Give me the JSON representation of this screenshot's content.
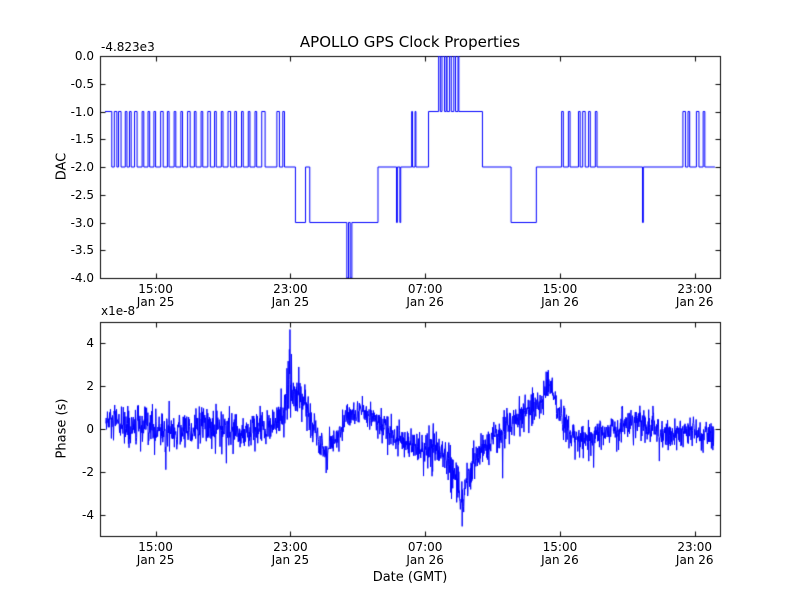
{
  "figure": {
    "title": "APOLLO GPS Clock Properties",
    "background": "#ffffff",
    "line_color": "#0000ff",
    "frame_color": "#000000"
  },
  "chart_data": [
    {
      "id": "dac",
      "type": "line",
      "title": "APOLLO GPS Clock Properties",
      "ylabel": "DAC",
      "y_offset_label": "-4.823e3",
      "y_offset_value": -4823,
      "line_style": "steps-post",
      "line_color": "#0000ff",
      "ylim": [
        -4.0,
        0.0
      ],
      "xlim": [
        11.7,
        48.5
      ],
      "yticks": [
        {
          "v": 0.0,
          "label": "0.0"
        },
        {
          "v": -0.5,
          "label": "-0.5"
        },
        {
          "v": -1.0,
          "label": "-1.0"
        },
        {
          "v": -1.5,
          "label": "-1.5"
        },
        {
          "v": -2.0,
          "label": "-2.0"
        },
        {
          "v": -2.5,
          "label": "-2.5"
        },
        {
          "v": -3.0,
          "label": "-3.0"
        },
        {
          "v": -3.5,
          "label": "-3.5"
        },
        {
          "v": -4.0,
          "label": "-4.0"
        }
      ],
      "xticks": [
        {
          "v": 15,
          "time": "15:00",
          "date": "Jan 25"
        },
        {
          "v": 23,
          "time": "23:00",
          "date": "Jan 25"
        },
        {
          "v": 31,
          "time": "07:00",
          "date": "Jan 26"
        },
        {
          "v": 39,
          "time": "15:00",
          "date": "Jan 26"
        },
        {
          "v": 47,
          "time": "23:00",
          "date": "Jan 26"
        }
      ],
      "t_end": 48.2,
      "steps": [
        [
          12.0,
          -1
        ],
        [
          12.4,
          -2
        ],
        [
          12.55,
          -1
        ],
        [
          12.7,
          -2
        ],
        [
          12.8,
          -1
        ],
        [
          12.95,
          -2
        ],
        [
          13.2,
          -1
        ],
        [
          13.3,
          -2
        ],
        [
          13.45,
          -1
        ],
        [
          13.55,
          -2
        ],
        [
          13.75,
          -1
        ],
        [
          13.9,
          -2
        ],
        [
          14.2,
          -1
        ],
        [
          14.3,
          -2
        ],
        [
          14.55,
          -1
        ],
        [
          14.65,
          -2
        ],
        [
          14.9,
          -1
        ],
        [
          15.0,
          -2
        ],
        [
          15.3,
          -1
        ],
        [
          15.45,
          -2
        ],
        [
          15.7,
          -1
        ],
        [
          15.8,
          -2
        ],
        [
          16.1,
          -1
        ],
        [
          16.2,
          -2
        ],
        [
          16.5,
          -1
        ],
        [
          16.6,
          -2
        ],
        [
          16.9,
          -1
        ],
        [
          17.05,
          -2
        ],
        [
          17.3,
          -1
        ],
        [
          17.4,
          -2
        ],
        [
          17.7,
          -1
        ],
        [
          17.8,
          -2
        ],
        [
          18.1,
          -1
        ],
        [
          18.25,
          -2
        ],
        [
          18.5,
          -1
        ],
        [
          18.6,
          -2
        ],
        [
          18.9,
          -1
        ],
        [
          19.0,
          -2
        ],
        [
          19.3,
          -1
        ],
        [
          19.45,
          -2
        ],
        [
          19.7,
          -1
        ],
        [
          19.8,
          -2
        ],
        [
          20.1,
          -1
        ],
        [
          20.2,
          -2
        ],
        [
          20.5,
          -1
        ],
        [
          20.6,
          -2
        ],
        [
          20.9,
          -1
        ],
        [
          21.0,
          -2
        ],
        [
          21.3,
          -1
        ],
        [
          21.5,
          -2
        ],
        [
          22.2,
          -1
        ],
        [
          22.35,
          -2
        ],
        [
          22.55,
          -1
        ],
        [
          22.65,
          -2
        ],
        [
          23.3,
          -3
        ],
        [
          23.9,
          -2
        ],
        [
          24.15,
          -3
        ],
        [
          26.35,
          -4
        ],
        [
          26.45,
          -3
        ],
        [
          26.55,
          -4
        ],
        [
          26.65,
          -3
        ],
        [
          28.2,
          -2
        ],
        [
          29.3,
          -3
        ],
        [
          29.35,
          -2
        ],
        [
          29.5,
          -3
        ],
        [
          29.55,
          -2
        ],
        [
          30.2,
          -1
        ],
        [
          30.25,
          -2
        ],
        [
          30.4,
          -1
        ],
        [
          30.45,
          -2
        ],
        [
          31.2,
          -1
        ],
        [
          31.8,
          0
        ],
        [
          31.9,
          -1
        ],
        [
          32.0,
          0
        ],
        [
          32.15,
          -1
        ],
        [
          32.25,
          0
        ],
        [
          32.3,
          -1
        ],
        [
          32.45,
          0
        ],
        [
          32.55,
          -1
        ],
        [
          32.7,
          0
        ],
        [
          32.8,
          -1
        ],
        [
          32.95,
          0
        ],
        [
          33.0,
          -1
        ],
        [
          34.4,
          -2
        ],
        [
          36.1,
          -3
        ],
        [
          37.6,
          -2
        ],
        [
          39.1,
          -1
        ],
        [
          39.2,
          -2
        ],
        [
          39.5,
          -1
        ],
        [
          39.6,
          -2
        ],
        [
          40.1,
          -1
        ],
        [
          40.2,
          -2
        ],
        [
          40.35,
          -1
        ],
        [
          40.5,
          -2
        ],
        [
          40.7,
          -1
        ],
        [
          40.8,
          -2
        ],
        [
          41.1,
          -1
        ],
        [
          41.2,
          -2
        ],
        [
          43.9,
          -3
        ],
        [
          43.95,
          -2
        ],
        [
          46.3,
          -1
        ],
        [
          46.45,
          -2
        ],
        [
          46.6,
          -1
        ],
        [
          46.7,
          -2
        ],
        [
          47.1,
          -1
        ],
        [
          47.25,
          -2
        ],
        [
          47.5,
          -1
        ],
        [
          47.6,
          -2
        ]
      ]
    },
    {
      "id": "phase",
      "type": "line",
      "ylabel": "Phase (s)",
      "xlabel": "Date (GMT)",
      "y_scale_label": "x1e-8",
      "y_scale": 1e-08,
      "line_color": "#0000ff",
      "ylim": [
        -5,
        5
      ],
      "xlim": [
        11.7,
        48.5
      ],
      "yticks": [
        {
          "v": 4,
          "label": "4"
        },
        {
          "v": 2,
          "label": "2"
        },
        {
          "v": 0,
          "label": "0"
        },
        {
          "v": -2,
          "label": "-2"
        },
        {
          "v": -4,
          "label": "-4"
        }
      ],
      "xticks": [
        {
          "v": 15,
          "time": "15:00",
          "date": "Jan 25"
        },
        {
          "v": 23,
          "time": "23:00",
          "date": "Jan 25"
        },
        {
          "v": 31,
          "time": "07:00",
          "date": "Jan 26"
        },
        {
          "v": 39,
          "time": "15:00",
          "date": "Jan 26"
        },
        {
          "v": 47,
          "time": "23:00",
          "date": "Jan 26"
        }
      ],
      "noise": {
        "seed": 12345,
        "n_points": 2000,
        "t_start": 12.05,
        "t_end": 48.15
      },
      "trend": [
        [
          12.0,
          0.3,
          0.45
        ],
        [
          14.0,
          0.0,
          0.5
        ],
        [
          16.0,
          -0.1,
          0.5
        ],
        [
          18.0,
          0.1,
          0.45
        ],
        [
          20.0,
          -0.2,
          0.45
        ],
        [
          21.5,
          0.0,
          0.4
        ],
        [
          22.5,
          0.6,
          0.5
        ],
        [
          22.95,
          1.8,
          0.7
        ],
        [
          23.3,
          1.4,
          0.5
        ],
        [
          24.0,
          1.0,
          0.45
        ],
        [
          24.6,
          -0.3,
          0.4
        ],
        [
          25.1,
          -1.1,
          0.35
        ],
        [
          25.6,
          -0.6,
          0.35
        ],
        [
          26.3,
          0.4,
          0.35
        ],
        [
          27.0,
          0.8,
          0.3
        ],
        [
          27.8,
          0.6,
          0.35
        ],
        [
          28.6,
          0.0,
          0.4
        ],
        [
          29.5,
          -0.5,
          0.4
        ],
        [
          30.5,
          -0.8,
          0.4
        ],
        [
          31.5,
          -1.0,
          0.45
        ],
        [
          32.3,
          -1.3,
          0.5
        ],
        [
          32.9,
          -2.3,
          0.6
        ],
        [
          33.25,
          -3.7,
          0.5
        ],
        [
          33.6,
          -2.2,
          0.5
        ],
        [
          34.1,
          -1.2,
          0.45
        ],
        [
          35.0,
          -0.6,
          0.4
        ],
        [
          36.0,
          0.2,
          0.4
        ],
        [
          37.0,
          0.7,
          0.4
        ],
        [
          37.9,
          1.3,
          0.45
        ],
        [
          38.35,
          2.3,
          0.35
        ],
        [
          38.8,
          1.2,
          0.4
        ],
        [
          39.4,
          0.0,
          0.4
        ],
        [
          40.2,
          -0.5,
          0.4
        ],
        [
          41.5,
          -0.2,
          0.4
        ],
        [
          42.5,
          0.1,
          0.4
        ],
        [
          43.5,
          0.4,
          0.4
        ],
        [
          44.5,
          0.0,
          0.4
        ],
        [
          45.5,
          -0.3,
          0.4
        ],
        [
          46.5,
          -0.1,
          0.4
        ],
        [
          48.2,
          -0.5,
          0.4
        ]
      ],
      "spikes": [
        [
          22.98,
          4.65
        ],
        [
          23.06,
          3.5
        ],
        [
          23.5,
          2.9
        ],
        [
          25.2,
          -1.9
        ],
        [
          15.6,
          -1.9
        ],
        [
          19.2,
          -1.6
        ],
        [
          30.9,
          -2.2
        ],
        [
          32.95,
          -3.2
        ],
        [
          33.2,
          -4.55
        ],
        [
          35.6,
          -2.3
        ],
        [
          38.3,
          2.75
        ],
        [
          41.0,
          -1.8
        ],
        [
          44.9,
          -1.5
        ]
      ]
    }
  ]
}
